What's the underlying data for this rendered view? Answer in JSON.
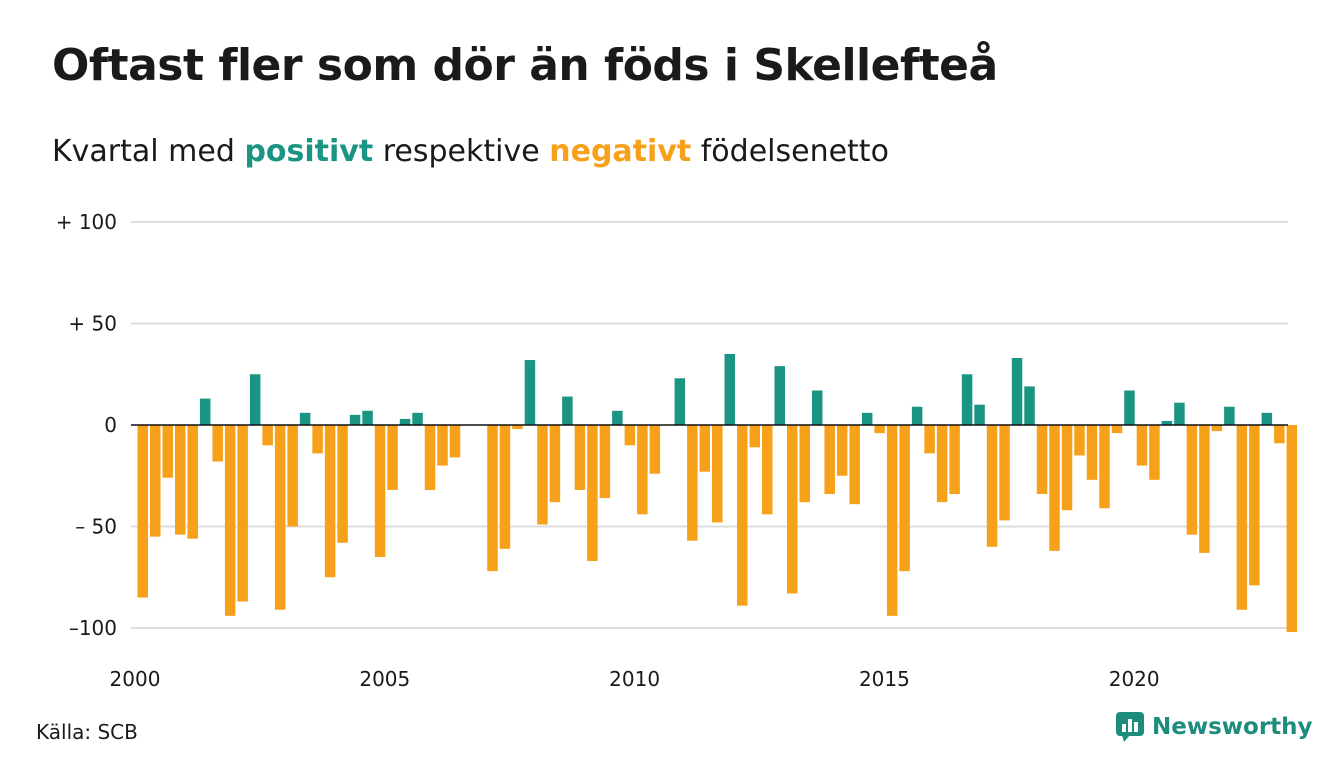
{
  "title": "Oftast fler som dör än föds i Skellefteå",
  "subtitle": {
    "before": "Kvartal med",
    "positive": "positivt",
    "middle": "respektive",
    "negative": "negativt",
    "after": "födelsenetto"
  },
  "source": "Källa: SCB",
  "logo": {
    "text": "Newsworthy",
    "icon": "newsworthy-chart-icon"
  },
  "colors": {
    "positive": "#1a9483",
    "negative": "#f7a11a",
    "grid": "#dddddd",
    "zero": "#111111"
  },
  "chart_data": {
    "type": "bar",
    "ylim": [
      -105,
      100
    ],
    "yticks": [
      {
        "value": 100,
        "label": "+ 100"
      },
      {
        "value": 50,
        "label": "+  50"
      },
      {
        "value": 0,
        "label": "0"
      },
      {
        "value": -50,
        "label": "– 50"
      },
      {
        "value": -100,
        "label": "–100"
      }
    ],
    "xticks": [
      "2000",
      "2005",
      "2010",
      "2015",
      "2020"
    ],
    "start_year": 2000,
    "quarters_per_year": 4,
    "values": [
      -85,
      -55,
      -26,
      -54,
      -56,
      13,
      -18,
      -94,
      -87,
      25,
      -10,
      -91,
      -50,
      6,
      -14,
      -75,
      -58,
      5,
      7,
      -65,
      -32,
      3,
      6,
      -32,
      -20,
      -16,
      0,
      0,
      -72,
      -61,
      -2,
      32,
      -49,
      -38,
      14,
      -32,
      -67,
      -36,
      7,
      -10,
      -44,
      -24,
      0,
      23,
      -57,
      -23,
      -48,
      35,
      -89,
      -11,
      -44,
      29,
      -83,
      -38,
      17,
      -34,
      -25,
      -39,
      6,
      -4,
      -94,
      -72,
      9,
      -14,
      -38,
      -34,
      25,
      10,
      -60,
      -47,
      33,
      19,
      -34,
      -62,
      -42,
      -15,
      -27,
      -41,
      -4,
      17,
      -20,
      -27,
      2,
      11,
      -54,
      -63,
      -3,
      9,
      -91,
      -79,
      6,
      -9,
      -102
    ]
  }
}
